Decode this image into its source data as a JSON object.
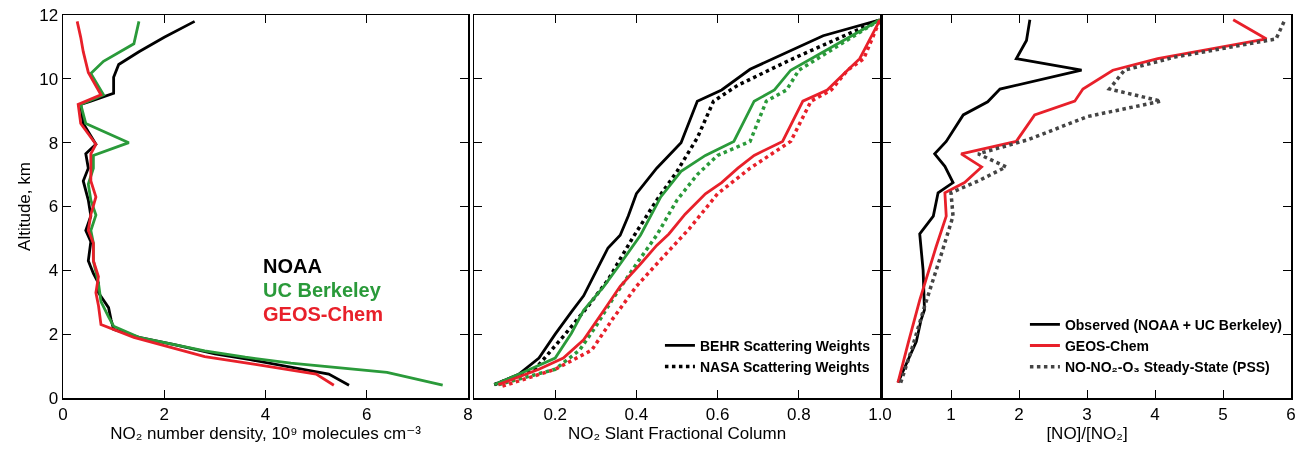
{
  "chart_data": [
    {
      "type": "line",
      "xlabel": "NO₂ number density, 10⁹ molecules cm⁻³",
      "ylabel": "Altitude, km",
      "xlim": [
        0,
        8
      ],
      "xticks": [
        0,
        2,
        4,
        6,
        8
      ],
      "ylim": [
        0,
        12
      ],
      "yticks": [
        0,
        2,
        4,
        6,
        8,
        10,
        12
      ],
      "grid": false,
      "series": [
        {
          "name": "NOAA",
          "color": "#000000",
          "line_style": "solid",
          "x": [
            5.65,
            5.25,
            3.7,
            3.0,
            2.2,
            1.5,
            1.0,
            0.95,
            0.9,
            0.7,
            0.7,
            0.6,
            0.5,
            0.55,
            0.45,
            0.55,
            0.5,
            0.4,
            0.5,
            0.45,
            0.65,
            0.4,
            0.35,
            0.55,
            1.0,
            1.0,
            1.1,
            1.5,
            2.0,
            2.6
          ],
          "values": [
            0.4,
            0.75,
            1.2,
            1.38,
            1.67,
            1.9,
            2.15,
            2.45,
            2.83,
            3.3,
            3.6,
            3.9,
            4.3,
            4.9,
            5.25,
            5.7,
            6.2,
            6.8,
            7.2,
            7.65,
            7.95,
            8.6,
            9.2,
            9.3,
            9.55,
            10.05,
            10.45,
            10.85,
            11.3,
            11.8
          ]
        },
        {
          "name": "UC Berkeley",
          "color": "#2a9a3a",
          "line_style": "solid",
          "x": [
            7.5,
            6.4,
            4.5,
            3.6,
            2.8,
            1.5,
            1.0,
            0.9,
            0.75,
            0.7,
            0.6,
            0.6,
            0.55,
            0.65,
            0.55,
            0.5,
            0.6,
            0.6,
            1.3,
            0.45,
            0.35,
            0.8,
            0.55,
            0.8,
            1.4,
            1.5
          ],
          "values": [
            0.4,
            0.8,
            1.09,
            1.28,
            1.48,
            1.9,
            2.25,
            2.54,
            3.02,
            3.6,
            4.3,
            4.85,
            5.25,
            5.73,
            6.2,
            6.7,
            7.2,
            7.6,
            8.0,
            8.6,
            9.2,
            9.5,
            10.17,
            10.55,
            11.1,
            11.8
          ]
        },
        {
          "name": "GEOS-Chem",
          "color": "#e8202a",
          "line_style": "solid",
          "x": [
            5.35,
            5.0,
            3.8,
            2.8,
            1.4,
            0.75,
            0.7,
            0.65,
            0.7,
            0.6,
            0.6,
            0.5,
            0.55,
            0.65,
            0.55,
            0.55,
            0.65,
            0.35,
            0.3,
            0.75,
            0.5,
            0.4,
            0.35,
            0.28
          ],
          "values": [
            0.4,
            0.75,
            1.05,
            1.3,
            1.9,
            2.3,
            2.9,
            3.3,
            3.8,
            4.3,
            4.85,
            5.25,
            5.75,
            6.3,
            6.8,
            7.65,
            7.95,
            8.6,
            9.2,
            9.5,
            10.2,
            10.85,
            11.3,
            11.8
          ]
        }
      ]
    },
    {
      "type": "line",
      "xlabel": "NO₂ Slant Fractional Column",
      "xlim": [
        0,
        1
      ],
      "xticks": [
        0.2,
        0.4,
        0.6,
        0.8,
        "1.0"
      ],
      "ylim": [
        0,
        12
      ],
      "yticks": [
        0,
        2,
        4,
        6,
        8,
        10,
        12
      ],
      "tick_labels": "x",
      "grid": false,
      "legend": "bottom right",
      "series": [
        {
          "name": "BEHR Scattering Weights",
          "color": "#000000",
          "line_style": "solid",
          "x": [
            0.05,
            0.11,
            0.16,
            0.2,
            0.24,
            0.27,
            0.31,
            0.33,
            0.36,
            0.38,
            0.4,
            0.45,
            0.48,
            0.51,
            0.55,
            0.61,
            0.68,
            0.86,
            1.0
          ],
          "values": [
            0.42,
            0.74,
            1.25,
            2.0,
            2.7,
            3.2,
            4.2,
            4.7,
            5.1,
            5.7,
            6.4,
            7.2,
            7.6,
            8.0,
            9.3,
            9.65,
            10.3,
            11.35,
            11.85
          ]
        },
        {
          "name": "NASA Scattering Weights",
          "color": "#000000",
          "line_style": "dotted",
          "x": [
            0.05,
            0.15,
            0.22,
            0.28,
            0.33,
            0.39,
            0.45,
            0.5,
            0.55,
            0.59,
            0.65,
            0.78,
            1.0
          ],
          "values": [
            0.42,
            0.9,
            1.93,
            2.86,
            3.7,
            5.0,
            6.2,
            7.1,
            8.15,
            9.3,
            9.8,
            10.6,
            11.85
          ]
        },
        {
          "color": "#2a9a3a",
          "line_style": "solid",
          "x": [
            0.05,
            0.12,
            0.2,
            0.24,
            0.27,
            0.32,
            0.36,
            0.41,
            0.46,
            0.51,
            0.57,
            0.64,
            0.69,
            0.74,
            0.78,
            1.0
          ],
          "values": [
            0.42,
            0.8,
            1.25,
            2.03,
            2.75,
            3.5,
            4.2,
            5.1,
            6.3,
            7.1,
            7.6,
            8.04,
            9.3,
            9.65,
            10.27,
            11.85
          ]
        },
        {
          "color": "#2a9a3a",
          "line_style": "dotted",
          "x": [
            0.06,
            0.2,
            0.26,
            0.3,
            0.34,
            0.4,
            0.45,
            0.5,
            0.55,
            0.6,
            0.68,
            0.72,
            0.77,
            0.8,
            1.0
          ],
          "values": [
            0.42,
            0.9,
            1.5,
            2.24,
            3.07,
            4.2,
            5.1,
            6.2,
            7.0,
            7.6,
            8.04,
            9.3,
            9.65,
            10.27,
            11.85
          ]
        },
        {
          "color": "#e8202a",
          "line_style": "solid",
          "x": [
            0.06,
            0.16,
            0.22,
            0.27,
            0.32,
            0.36,
            0.41,
            0.45,
            0.48,
            0.52,
            0.57,
            0.61,
            0.65,
            0.69,
            0.76,
            0.81,
            0.87,
            0.92,
            0.95,
            1.0
          ],
          "values": [
            0.42,
            0.9,
            1.25,
            1.82,
            2.75,
            3.5,
            4.2,
            4.78,
            5.14,
            5.76,
            6.4,
            6.75,
            7.2,
            7.6,
            8.04,
            9.3,
            9.65,
            10.27,
            10.63,
            11.85
          ]
        },
        {
          "color": "#e8202a",
          "line_style": "dotted",
          "x": [
            0.07,
            0.2,
            0.29,
            0.34,
            0.4,
            0.45,
            0.53,
            0.6,
            0.68,
            0.78,
            0.83,
            0.88,
            0.92,
            0.96,
            1.0
          ],
          "values": [
            0.37,
            0.9,
            1.5,
            2.45,
            3.5,
            4.2,
            5.3,
            6.4,
            7.2,
            8.04,
            9.3,
            9.65,
            10.27,
            10.63,
            11.85
          ]
        }
      ]
    },
    {
      "type": "line",
      "xlabel": "[NO]/[NO₂]",
      "xlim": [
        0,
        6
      ],
      "xticks": [
        1,
        2,
        3,
        4,
        5,
        6
      ],
      "ylim": [
        0,
        12
      ],
      "yticks": [
        0,
        2,
        4,
        6,
        8,
        10,
        12
      ],
      "tick_labels": "x",
      "grid": false,
      "legend": "bottom right",
      "series": [
        {
          "name": "Observed (NOAA + UC Berkeley)",
          "color": "#000000",
          "line_style": "solid",
          "x": [
            0.22,
            0.37,
            0.49,
            0.56,
            0.61,
            0.59,
            0.54,
            0.74,
            0.81,
            1.03,
            0.91,
            0.76,
            0.93,
            1.18,
            1.54,
            1.72,
            2.92,
            1.96,
            2.11,
            2.16
          ],
          "values": [
            0.48,
            1.2,
            1.77,
            2.45,
            2.76,
            4.0,
            5.14,
            5.7,
            6.43,
            6.75,
            7.26,
            7.65,
            8.04,
            8.87,
            9.28,
            9.68,
            10.27,
            10.63,
            11.2,
            11.85
          ]
        },
        {
          "name": "GEOS-Chem",
          "color": "#e8202a",
          "line_style": "solid",
          "x": [
            0.22,
            0.37,
            0.54,
            0.78,
            0.93,
            0.91,
            1.2,
            1.45,
            1.15,
            1.96,
            2.23,
            2.82,
            2.94,
            3.38,
            4.04,
            5.64,
            5.15
          ],
          "values": [
            0.48,
            1.72,
            3.07,
            4.73,
            5.7,
            6.43,
            6.75,
            7.24,
            7.65,
            8.04,
            8.87,
            9.3,
            9.68,
            10.27,
            10.63,
            11.25,
            11.85
          ]
        },
        {
          "name": "NO-NO₂-O₃ Steady-State (PSS)",
          "color": "#444444",
          "line_style": "dotted",
          "x": [
            0.26,
            0.42,
            0.61,
            0.86,
            1.03,
            1.0,
            1.4,
            1.81,
            1.4,
            2.13,
            3.01,
            4.09,
            3.33,
            3.55,
            4.29,
            5.78,
            5.91
          ],
          "values": [
            0.48,
            1.51,
            2.86,
            4.52,
            5.7,
            6.43,
            6.8,
            7.24,
            7.65,
            8.09,
            8.82,
            9.3,
            9.68,
            10.27,
            10.68,
            11.25,
            11.85
          ]
        }
      ]
    }
  ]
}
